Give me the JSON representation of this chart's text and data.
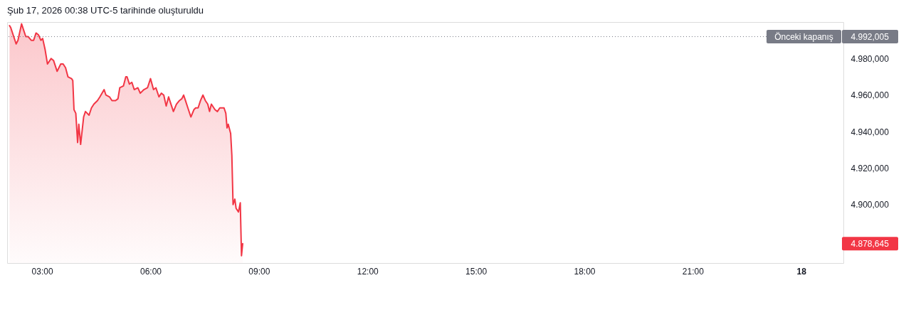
{
  "chart_data": {
    "type": "area",
    "title": "Şub 17, 2026 00:38 UTC-5 tarihinde oluşturuldu",
    "x": [
      "2026-02-17T02:06",
      "2026-02-17T02:08",
      "2026-02-17T02:12",
      "2026-02-17T02:17",
      "2026-02-17T02:20",
      "2026-02-17T02:26",
      "2026-02-17T02:30",
      "2026-02-17T02:33",
      "2026-02-17T02:37",
      "2026-02-17T02:42",
      "2026-02-17T02:46",
      "2026-02-17T02:50",
      "2026-02-17T02:54",
      "2026-02-17T02:58",
      "2026-02-17T03:01",
      "2026-02-17T03:05",
      "2026-02-17T03:09",
      "2026-02-17T03:15",
      "2026-02-17T03:19",
      "2026-02-17T03:25",
      "2026-02-17T03:31",
      "2026-02-17T03:35",
      "2026-02-17T03:39",
      "2026-02-17T03:43",
      "2026-02-17T03:49",
      "2026-02-17T03:51",
      "2026-02-17T03:53",
      "2026-02-17T03:56",
      "2026-02-17T03:59",
      "2026-02-17T04:01",
      "2026-02-17T04:04",
      "2026-02-17T04:09",
      "2026-02-17T04:12",
      "2026-02-17T04:18",
      "2026-02-17T04:22",
      "2026-02-17T04:26",
      "2026-02-17T04:32",
      "2026-02-17T04:36",
      "2026-02-17T04:43",
      "2026-02-17T04:46",
      "2026-02-17T04:52",
      "2026-02-17T04:56",
      "2026-02-17T05:02",
      "2026-02-17T05:06",
      "2026-02-17T05:09",
      "2026-02-17T05:15",
      "2026-02-17T05:19",
      "2026-02-17T05:21",
      "2026-02-17T05:25",
      "2026-02-17T05:29",
      "2026-02-17T05:33",
      "2026-02-17T05:39",
      "2026-02-17T05:43",
      "2026-02-17T05:49",
      "2026-02-17T05:55",
      "2026-02-17T06:00",
      "2026-02-17T06:05",
      "2026-02-17T06:09",
      "2026-02-17T06:14",
      "2026-02-17T06:18",
      "2026-02-17T06:22",
      "2026-02-17T06:26",
      "2026-02-17T06:30",
      "2026-02-17T06:34",
      "2026-02-17T06:38",
      "2026-02-17T06:43",
      "2026-02-17T06:48",
      "2026-02-17T06:52",
      "2026-02-17T06:55",
      "2026-02-17T06:58",
      "2026-02-17T07:02",
      "2026-02-17T07:07",
      "2026-02-17T07:12",
      "2026-02-17T07:15",
      "2026-02-17T07:19",
      "2026-02-17T07:23",
      "2026-02-17T07:27",
      "2026-02-17T07:31",
      "2026-02-17T07:35",
      "2026-02-17T07:38",
      "2026-02-17T07:41",
      "2026-02-17T07:47",
      "2026-02-17T07:51",
      "2026-02-17T07:55",
      "2026-02-17T07:59",
      "2026-02-17T08:02",
      "2026-02-17T08:05",
      "2026-02-17T08:07",
      "2026-02-17T08:09",
      "2026-02-17T08:13",
      "2026-02-17T08:15",
      "2026-02-17T08:17",
      "2026-02-17T08:20",
      "2026-02-17T08:22",
      "2026-02-17T08:26",
      "2026-02-17T08:29",
      "2026-02-17T08:31",
      "2026-02-17T08:33"
    ],
    "series": [
      {
        "color": "#f23645",
        "values": [
          4998,
          4997,
          4993,
          4988,
          4990,
          4999,
          4995,
          4992,
          4992,
          4990,
          4990,
          4994,
          4993,
          4990,
          4991,
          4985,
          4977,
          4980,
          4979,
          4973,
          4977,
          4977,
          4975,
          4970,
          4969,
          4968,
          4952,
          4950,
          4934,
          4944,
          4933,
          4948,
          4951,
          4949,
          4953,
          4955,
          4957,
          4959,
          4963,
          4960,
          4959,
          4957,
          4957,
          4958,
          4964,
          4965,
          4970,
          4970,
          4966,
          4967,
          4963,
          4964,
          4961,
          4963,
          4964,
          4969,
          4963,
          4964,
          4959,
          4961,
          4960,
          4954,
          4959,
          4955,
          4951,
          4955,
          4957,
          4958,
          4960,
          4957,
          4953,
          4948,
          4952,
          4953,
          4953,
          4957,
          4960,
          4957,
          4955,
          4951,
          4955,
          4952,
          4951,
          4953,
          4953,
          4953,
          4950,
          4942,
          4944,
          4939,
          4927,
          4900,
          4903,
          4898,
          4896,
          4901,
          4872,
          4878.645
        ]
      }
    ],
    "xlim": [
      "2026-02-17T02:02",
      "2026-02-18T01:10"
    ],
    "xticks": [
      {
        "value": "2026-02-17T03:00",
        "label": "03:00"
      },
      {
        "value": "2026-02-17T06:00",
        "label": "06:00"
      },
      {
        "value": "2026-02-17T09:00",
        "label": "09:00"
      },
      {
        "value": "2026-02-17T12:00",
        "label": "12:00"
      },
      {
        "value": "2026-02-17T15:00",
        "label": "15:00"
      },
      {
        "value": "2026-02-17T18:00",
        "label": "18:00"
      },
      {
        "value": "2026-02-17T21:00",
        "label": "21:00"
      },
      {
        "value": "2026-02-18T00:00",
        "label": "18"
      }
    ],
    "ylim": [
      4868,
      5000
    ],
    "yticks": [
      {
        "value": 4878.645,
        "label": "4.878,645"
      },
      {
        "value": 4900,
        "label": "4.900,000"
      },
      {
        "value": 4920,
        "label": "4.920,000"
      },
      {
        "value": 4940,
        "label": "4.940,000"
      },
      {
        "value": 4960,
        "label": "4.960,000"
      },
      {
        "value": 4980,
        "label": "4.980,000"
      },
      {
        "value": 4992.005,
        "label": "4.992,005"
      }
    ],
    "ref_lines": [
      {
        "axis": "y",
        "value": 4992.005,
        "label": "Önceki kapanış",
        "color": "#787b86",
        "line_style": "dotted"
      }
    ]
  }
}
